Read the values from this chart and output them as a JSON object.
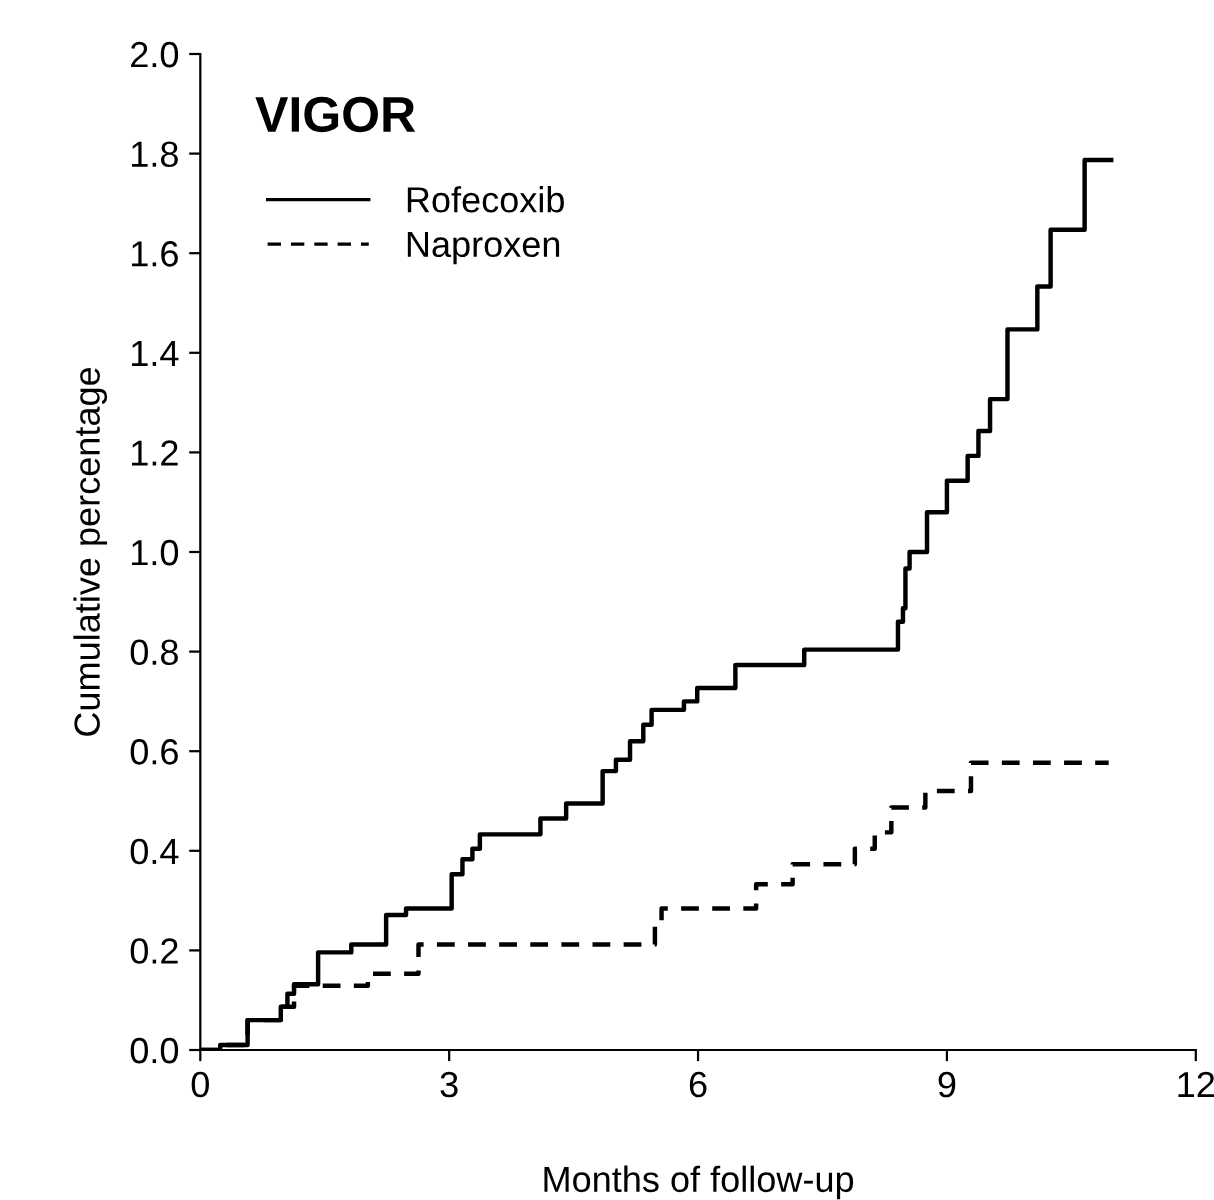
{
  "chart_data": {
    "type": "step",
    "title": "VIGOR",
    "xlabel": "Months of follow-up",
    "ylabel": "Cumulative percentage",
    "xlim": [
      0,
      12
    ],
    "ylim": [
      0,
      2.0
    ],
    "xticks": [
      0,
      3,
      6,
      9,
      12
    ],
    "yticks": [
      {
        "value": 0,
        "label": "0.0"
      },
      0.2,
      0.4,
      0.6,
      0.8,
      {
        "value": 1.0,
        "label": "1.0"
      },
      1.2,
      1.4,
      1.6,
      1.8,
      {
        "value": 2.0,
        "label": "2.0"
      }
    ],
    "legend": "top left",
    "grid": false,
    "marker": "none",
    "series": [
      {
        "name": "Rofecoxib",
        "color": "#000000",
        "line_style": "solid",
        "x": [
          0,
          0.24,
          0.57,
          0.97,
          1.05,
          1.13,
          1.42,
          1.82,
          2.24,
          2.48,
          3.03,
          3.16,
          3.28,
          3.37,
          4.1,
          4.41,
          4.85,
          5.01,
          5.18,
          5.34,
          5.44,
          5.83,
          5.99,
          6.45,
          7.28,
          8.41,
          8.47,
          8.5,
          8.55,
          8.76,
          9.0,
          9.25,
          9.38,
          9.52,
          9.73,
          10.09,
          10.25,
          10.66,
          10.98
        ],
        "values": [
          0,
          0.01,
          0.06,
          0.087,
          0.113,
          0.132,
          0.196,
          0.212,
          0.271,
          0.284,
          0.353,
          0.383,
          0.404,
          0.433,
          0.465,
          0.495,
          0.56,
          0.583,
          0.62,
          0.653,
          0.683,
          0.7,
          0.727,
          0.773,
          0.804,
          0.86,
          0.887,
          0.967,
          1.0,
          1.08,
          1.143,
          1.193,
          1.243,
          1.307,
          1.447,
          1.533,
          1.647,
          1.787,
          1.787
        ]
      },
      {
        "name": "Naproxen",
        "color": "#000000",
        "line_style": "dashed",
        "x": [
          0,
          0.24,
          0.57,
          0.97,
          1.13,
          2.02,
          2.63,
          5.48,
          5.56,
          6.7,
          7.14,
          7.89,
          8.13,
          8.33,
          8.74,
          9.29,
          10.95
        ],
        "values": [
          0,
          0.01,
          0.06,
          0.087,
          0.129,
          0.153,
          0.212,
          0.249,
          0.284,
          0.333,
          0.373,
          0.404,
          0.437,
          0.487,
          0.52,
          0.577,
          0.577
        ]
      }
    ]
  }
}
